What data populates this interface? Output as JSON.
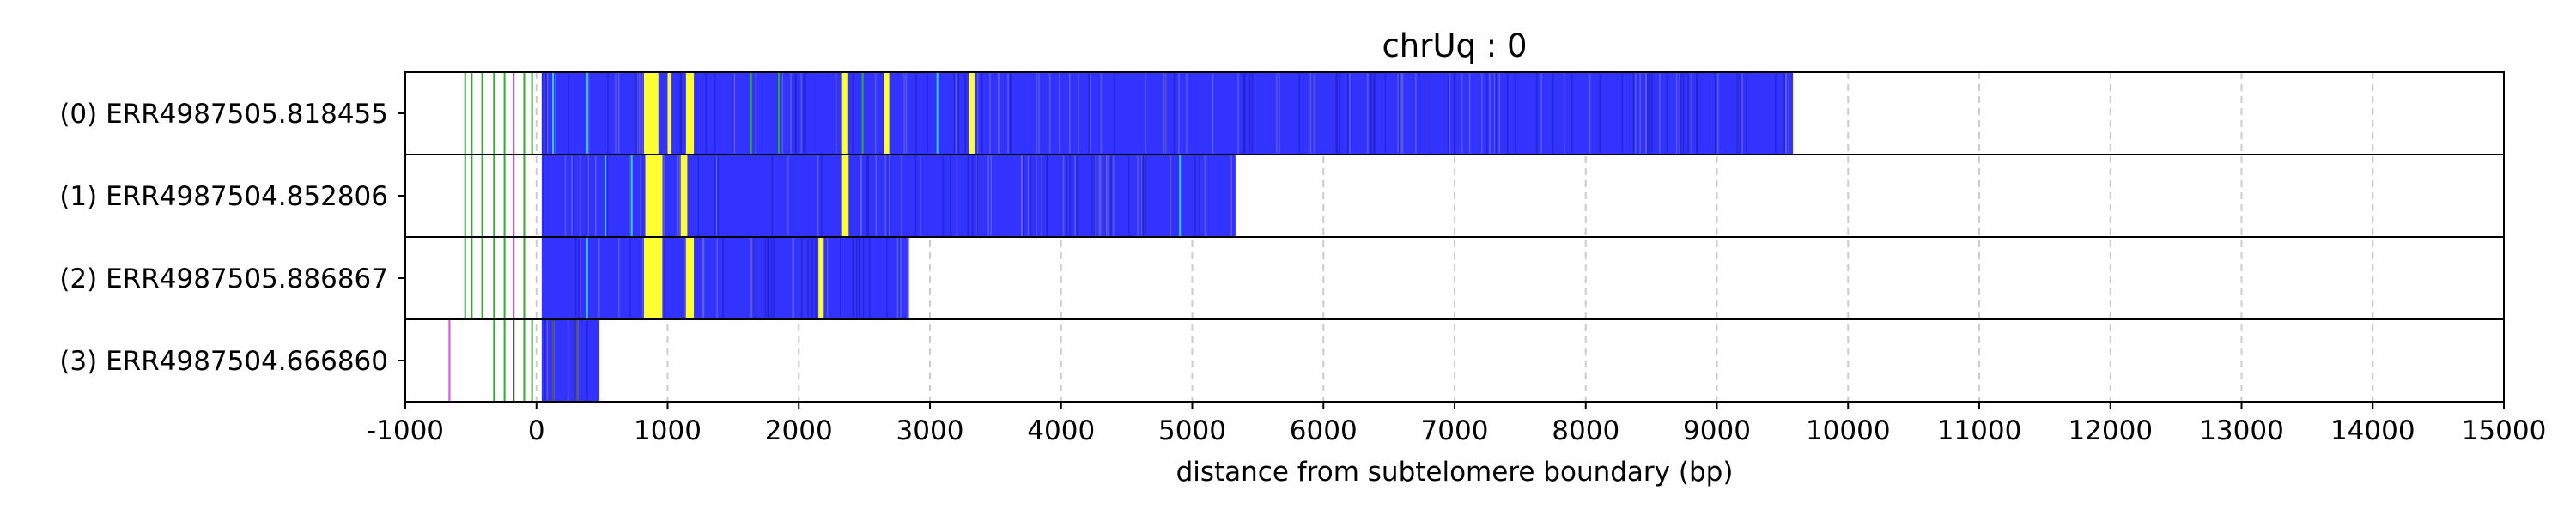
{
  "chart_data": {
    "type": "heatmap",
    "title": "chrUq : 0",
    "xlabel": "distance from subtelomere boundary (bp)",
    "ylabel": "",
    "xlim": [
      -1000,
      15000
    ],
    "x_ticks": [
      -1000,
      0,
      1000,
      2000,
      3000,
      4000,
      5000,
      6000,
      7000,
      8000,
      9000,
      10000,
      11000,
      12000,
      13000,
      14000,
      15000
    ],
    "x_tick_labels": [
      "-1000",
      "0",
      "1000",
      "2000",
      "3000",
      "4000",
      "5000",
      "6000",
      "7000",
      "8000",
      "9000",
      "10000",
      "11000",
      "12000",
      "13000",
      "14000",
      "15000"
    ],
    "grid": {
      "x": true,
      "y": false,
      "style": "dashed"
    },
    "legend": "none",
    "colors": {
      "repeat_fill": "#3333ff",
      "variant_yellow": "#ffff33",
      "variant_cyan": "#33ccff",
      "variant_green": "#33aa33",
      "variant_purple": "#cc55cc",
      "variant_dark": "#555555",
      "grid": "#cccccc",
      "row_border": "#000000"
    },
    "rows": [
      {
        "label": "(0) ERR4987505.818455",
        "repeat_start": 40,
        "repeat_end": 9580,
        "marks": [
          {
            "x": -550,
            "color": "green"
          },
          {
            "x": -500,
            "color": "green"
          },
          {
            "x": -420,
            "color": "green"
          },
          {
            "x": -330,
            "color": "green"
          },
          {
            "x": -250,
            "color": "green"
          },
          {
            "x": -180,
            "color": "purple"
          },
          {
            "x": -100,
            "color": "green"
          },
          {
            "x": -40,
            "color": "green"
          },
          {
            "x": 120,
            "color": "cyan"
          },
          {
            "x": 380,
            "color": "cyan"
          },
          {
            "x": 820,
            "color": "yellow",
            "w": 110
          },
          {
            "x": 1000,
            "color": "yellow",
            "w": 30
          },
          {
            "x": 1140,
            "color": "yellow",
            "w": 60
          },
          {
            "x": 2330,
            "color": "yellow",
            "w": 40
          },
          {
            "x": 2650,
            "color": "yellow",
            "w": 40
          },
          {
            "x": 3300,
            "color": "yellow",
            "w": 40
          },
          {
            "x": 1630,
            "color": "green"
          },
          {
            "x": 1840,
            "color": "green"
          },
          {
            "x": 2480,
            "color": "green"
          },
          {
            "x": 3050,
            "color": "cyan"
          }
        ]
      },
      {
        "label": "(1) ERR4987504.852806",
        "repeat_start": 40,
        "repeat_end": 5330,
        "marks": [
          {
            "x": -550,
            "color": "green"
          },
          {
            "x": -500,
            "color": "green"
          },
          {
            "x": -420,
            "color": "green"
          },
          {
            "x": -330,
            "color": "green"
          },
          {
            "x": -250,
            "color": "green"
          },
          {
            "x": -180,
            "color": "purple"
          },
          {
            "x": -100,
            "color": "green"
          },
          {
            "x": 520,
            "color": "cyan"
          },
          {
            "x": 720,
            "color": "cyan"
          },
          {
            "x": 830,
            "color": "yellow",
            "w": 130
          },
          {
            "x": 1100,
            "color": "yellow",
            "w": 50
          },
          {
            "x": 2330,
            "color": "yellow",
            "w": 50
          },
          {
            "x": 4900,
            "color": "cyan"
          }
        ]
      },
      {
        "label": "(2) ERR4987505.886867",
        "repeat_start": 40,
        "repeat_end": 2840,
        "marks": [
          {
            "x": -550,
            "color": "green"
          },
          {
            "x": -500,
            "color": "green"
          },
          {
            "x": -420,
            "color": "green"
          },
          {
            "x": -330,
            "color": "green"
          },
          {
            "x": -250,
            "color": "green"
          },
          {
            "x": -180,
            "color": "purple"
          },
          {
            "x": -100,
            "color": "green"
          },
          {
            "x": 380,
            "color": "cyan"
          },
          {
            "x": 820,
            "color": "yellow",
            "w": 140
          },
          {
            "x": 1140,
            "color": "yellow",
            "w": 60
          },
          {
            "x": 2150,
            "color": "yellow",
            "w": 40
          }
        ]
      },
      {
        "label": "(3) ERR4987504.666860",
        "repeat_start": 40,
        "repeat_end": 480,
        "marks": [
          {
            "x": -670,
            "color": "purple"
          },
          {
            "x": -330,
            "color": "green"
          },
          {
            "x": -250,
            "color": "green"
          },
          {
            "x": -180,
            "color": "dark"
          },
          {
            "x": -100,
            "color": "green"
          },
          {
            "x": -40,
            "color": "green"
          },
          {
            "x": 120,
            "color": "dark"
          },
          {
            "x": 300,
            "color": "dark"
          }
        ]
      }
    ]
  }
}
